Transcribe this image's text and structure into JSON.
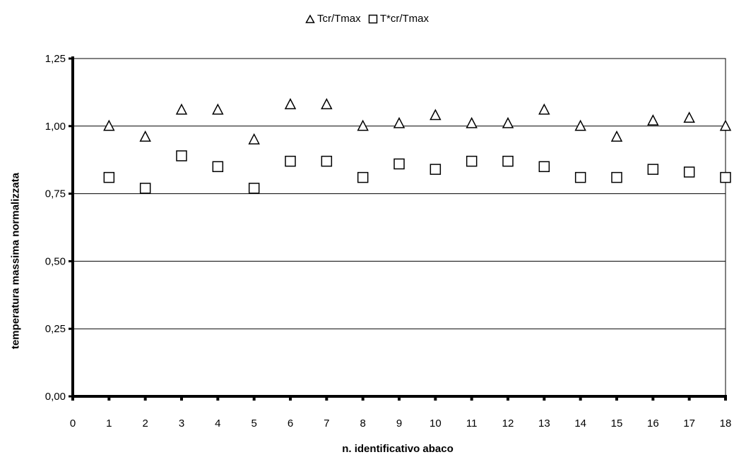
{
  "chart_data": {
    "type": "scatter",
    "xlabel": "n. identificativo abaco",
    "ylabel": "temperatura massima normalizzata",
    "xlim": [
      0,
      18
    ],
    "ylim": [
      0,
      1.25
    ],
    "x_ticks": [
      "0",
      "1",
      "2",
      "3",
      "4",
      "5",
      "6",
      "7",
      "8",
      "9",
      "10",
      "11",
      "12",
      "13",
      "14",
      "15",
      "16",
      "17",
      "18"
    ],
    "y_ticks": [
      "0,00",
      "0,25",
      "0,50",
      "0,75",
      "1,00",
      "1,25"
    ],
    "y_tick_values": [
      0,
      0.25,
      0.5,
      0.75,
      1.0,
      1.25
    ],
    "grid": "horizontal",
    "legend_position": "top-center",
    "x": [
      1,
      2,
      3,
      4,
      5,
      6,
      7,
      8,
      9,
      10,
      11,
      12,
      13,
      14,
      15,
      16,
      17,
      18
    ],
    "series": [
      {
        "name": "Tcr/Tmax",
        "marker": "triangle",
        "values": [
          1.0,
          0.96,
          1.06,
          1.06,
          0.95,
          1.08,
          1.08,
          1.0,
          1.01,
          1.04,
          1.01,
          1.01,
          1.06,
          1.0,
          0.96,
          1.02,
          1.03,
          1.0
        ]
      },
      {
        "name": "T*cr/Tmax",
        "marker": "square",
        "values": [
          0.81,
          0.77,
          0.89,
          0.85,
          0.77,
          0.87,
          0.87,
          0.81,
          0.86,
          0.84,
          0.87,
          0.87,
          0.85,
          0.81,
          0.81,
          0.84,
          0.83,
          0.81
        ]
      }
    ]
  }
}
